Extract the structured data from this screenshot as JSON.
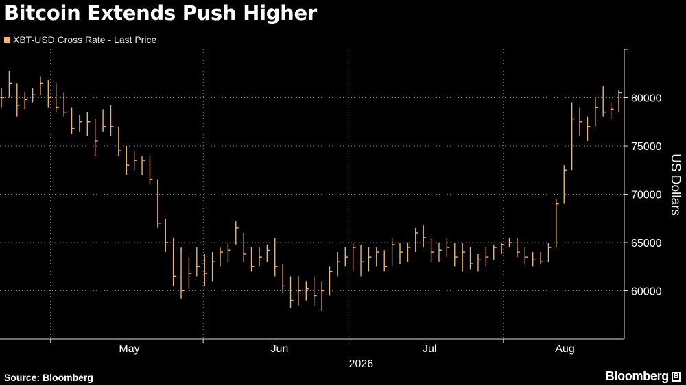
{
  "header": {
    "title": "Bitcoin Extends Push Higher"
  },
  "legend": {
    "label": "XBT-USD Cross Rate - Last Price",
    "color": "#f0b46b"
  },
  "footer": {
    "source": "Source: Bloomberg",
    "brand": "Bloomberg"
  },
  "chart_data": {
    "type": "line",
    "style": "ohlc-bars",
    "series": [
      {
        "name": "XBT-USD Cross Rate - Last Price",
        "color": "#f0b46b",
        "values": [
          [
            81000,
            79000,
            80000
          ],
          [
            82800,
            80000,
            81500
          ],
          [
            81500,
            78000,
            79200
          ],
          [
            80500,
            78800,
            79800
          ],
          [
            81000,
            79500,
            80300
          ],
          [
            82200,
            80300,
            81500
          ],
          [
            81800,
            79000,
            80000
          ],
          [
            81500,
            78500,
            79000
          ],
          [
            80500,
            78000,
            78500
          ],
          [
            79000,
            76200,
            76800
          ],
          [
            78200,
            76500,
            77500
          ],
          [
            78500,
            76000,
            77500
          ],
          [
            77800,
            74000,
            75500
          ],
          [
            78800,
            76500,
            77000
          ],
          [
            79200,
            76000,
            77000
          ],
          [
            77000,
            74000,
            74500
          ],
          [
            75000,
            72000,
            73000
          ],
          [
            74500,
            72500,
            73500
          ],
          [
            74000,
            72000,
            73500
          ],
          [
            74000,
            71000,
            71500
          ],
          [
            71500,
            66500,
            67000
          ],
          [
            67500,
            64000,
            65000
          ],
          [
            65500,
            60500,
            61500
          ],
          [
            64500,
            59200,
            60000
          ],
          [
            63500,
            60200,
            61800
          ],
          [
            64500,
            61500,
            62500
          ],
          [
            63800,
            60500,
            61800
          ],
          [
            64000,
            61000,
            63000
          ],
          [
            64500,
            62500,
            64000
          ],
          [
            65000,
            63000,
            64200
          ],
          [
            67200,
            64800,
            66500
          ],
          [
            66000,
            63000,
            63800
          ],
          [
            64500,
            62000,
            62500
          ],
          [
            64500,
            62500,
            63500
          ],
          [
            64800,
            63000,
            64200
          ],
          [
            65500,
            61500,
            62500
          ],
          [
            62800,
            59800,
            60500
          ],
          [
            61500,
            58200,
            59000
          ],
          [
            61500,
            58500,
            60000
          ],
          [
            61000,
            59000,
            60200
          ],
          [
            61500,
            58500,
            59500
          ],
          [
            61000,
            57900,
            60000
          ],
          [
            62500,
            59500,
            62000
          ],
          [
            64000,
            61500,
            63000
          ],
          [
            64500,
            62500,
            63500
          ],
          [
            65000,
            62000,
            64500
          ],
          [
            64800,
            61500,
            63000
          ],
          [
            64500,
            62000,
            63500
          ],
          [
            64500,
            62500,
            64000
          ],
          [
            64200,
            62000,
            62500
          ],
          [
            65500,
            62500,
            64800
          ],
          [
            65000,
            62800,
            64000
          ],
          [
            65000,
            63000,
            64500
          ],
          [
            66500,
            64000,
            66000
          ],
          [
            66800,
            64500,
            65500
          ],
          [
            65500,
            63000,
            64000
          ],
          [
            65000,
            63000,
            64200
          ],
          [
            65500,
            63500,
            64500
          ],
          [
            65000,
            62500,
            63500
          ],
          [
            65000,
            62000,
            64000
          ],
          [
            64500,
            62200,
            62800
          ],
          [
            63800,
            62000,
            63200
          ],
          [
            64500,
            62500,
            63500
          ],
          [
            64800,
            63200,
            64500
          ],
          [
            65000,
            63800,
            64800
          ],
          [
            65500,
            64500,
            65000
          ],
          [
            65500,
            63500,
            64000
          ],
          [
            64500,
            62800,
            63500
          ],
          [
            64000,
            62500,
            63200
          ],
          [
            64000,
            62800,
            63000
          ],
          [
            65000,
            63000,
            64500
          ],
          [
            69500,
            64500,
            69000
          ],
          [
            73000,
            69000,
            72500
          ],
          [
            79500,
            72500,
            77800
          ],
          [
            79000,
            76000,
            77500
          ],
          [
            78000,
            75500,
            77000
          ],
          [
            80000,
            77000,
            79000
          ],
          [
            81200,
            78000,
            78500
          ],
          [
            79500,
            77800,
            78800
          ],
          [
            80800,
            78500,
            80500
          ]
        ]
      }
    ],
    "value_format": "[high, low, close] per trading day",
    "x_start": "2026-04-20",
    "x_end": "2026-08-24",
    "x_ticks": [
      {
        "date": "2026-05-01",
        "label": "May"
      },
      {
        "date": "2026-06-01",
        "label": "Jun"
      },
      {
        "date": "2026-07-01",
        "label": "Jul"
      },
      {
        "date": "2026-08-01",
        "label": "Aug"
      }
    ],
    "x_year_label": "2026",
    "y_ticks": [
      60000,
      65000,
      70000,
      75000,
      80000
    ],
    "ylim": [
      55000,
      85000
    ],
    "ylabel": "US Dollars",
    "y_axis_side": "right",
    "grid": "dotted"
  }
}
